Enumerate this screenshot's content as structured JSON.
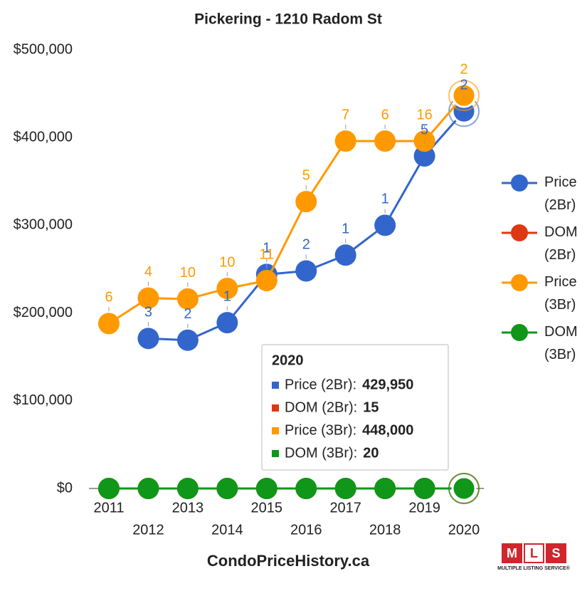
{
  "chart_data": {
    "type": "line",
    "title": "Pickering - 1210 Radom St",
    "footer": "CondoPriceHistory.ca",
    "logo": {
      "letters": [
        "M",
        "L",
        "S"
      ],
      "caption": "MULTIPLE LISTING SERVICE®"
    },
    "categories": [
      "2011",
      "2012",
      "2013",
      "2014",
      "2015",
      "2016",
      "2017",
      "2018",
      "2019",
      "2020"
    ],
    "ylim": [
      0,
      500000
    ],
    "yticks": [
      {
        "value": 0,
        "label": "$0"
      },
      {
        "value": 100000,
        "label": "$100,000"
      },
      {
        "value": 200000,
        "label": "$200,000"
      },
      {
        "value": 300000,
        "label": "$300,000"
      },
      {
        "value": 400000,
        "label": "$400,000"
      },
      {
        "value": 500000,
        "label": "$500,000"
      }
    ],
    "series": [
      {
        "name": "Price (2Br)",
        "color": "#3366cc",
        "values": [
          null,
          171000,
          169000,
          189000,
          244000,
          248000,
          266000,
          300000,
          379000,
          429950
        ],
        "counts": [
          null,
          "3",
          "2",
          "1",
          "1",
          "2",
          "1",
          "1",
          "5",
          "2"
        ]
      },
      {
        "name": "DOM (2Br)",
        "color": "#dc3912",
        "values": [
          0,
          0,
          0,
          0,
          0,
          0,
          0,
          0,
          0,
          15
        ]
      },
      {
        "name": "Price (3Br)",
        "color": "#ff9900",
        "values": [
          188000,
          217000,
          216000,
          228000,
          237000,
          327000,
          396000,
          396000,
          396000,
          448000
        ],
        "counts": [
          "6",
          "4",
          "10",
          "10",
          "11",
          "5",
          "7",
          "6",
          "16",
          "2"
        ]
      },
      {
        "name": "DOM (3Br)",
        "color": "#109618",
        "values": [
          0,
          0,
          0,
          0,
          0,
          0,
          0,
          0,
          0,
          20
        ]
      }
    ],
    "highlight_index": 9,
    "tooltip": {
      "title": "2020",
      "rows": [
        {
          "label": "Price (2Br):",
          "value": "429,950"
        },
        {
          "label": "DOM (2Br):",
          "value": "15"
        },
        {
          "label": "Price (3Br):",
          "value": "448,000"
        },
        {
          "label": "DOM (3Br):",
          "value": "20"
        }
      ]
    }
  }
}
